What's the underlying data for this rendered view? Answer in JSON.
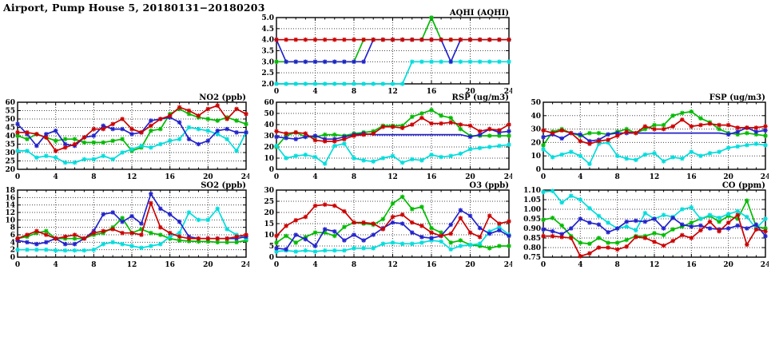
{
  "page": {
    "title": "Airport, Pump House 5, 20180131−20180203"
  },
  "series_colors": {
    "green": "#00bb00",
    "cyan": "#00dddd",
    "blue": "#2222cc",
    "red": "#cc0000"
  },
  "chart_data": [
    {
      "id": "aqhi",
      "type": "line",
      "title": "AQHI (AQHI)",
      "xlabel": "",
      "ylabel": "",
      "xlim": [
        0,
        24
      ],
      "xticks": [
        "0",
        "4",
        "8",
        "12",
        "16",
        "20",
        "24"
      ],
      "xminor": 1,
      "x_start": 0,
      "x_step": 1,
      "ylim": [
        2,
        5
      ],
      "yticks": [
        "2.0",
        "2.5",
        "3.0",
        "3.5",
        "4.0",
        "4.5",
        "5.0"
      ],
      "grid": true,
      "legend": "none",
      "series": [
        {
          "name": "green",
          "color": "#00bb00",
          "values": [
            3,
            3,
            3,
            3,
            3,
            3,
            3,
            3,
            3,
            4,
            4,
            4,
            4,
            4,
            4,
            4,
            5,
            4,
            4,
            4,
            4,
            4,
            4,
            4,
            4
          ]
        },
        {
          "name": "cyan",
          "color": "#00dddd",
          "values": [
            2,
            2,
            2,
            2,
            2,
            2,
            2,
            2,
            2,
            2,
            2,
            2,
            2,
            2,
            3,
            3,
            3,
            3,
            3,
            3,
            3,
            3,
            3,
            3,
            3
          ]
        },
        {
          "name": "blue",
          "color": "#2222cc",
          "values": [
            4,
            3,
            3,
            3,
            3,
            3,
            3,
            3,
            3,
            3,
            4,
            4,
            4,
            4,
            4,
            4,
            4,
            4,
            3,
            4,
            4,
            4,
            4,
            4,
            4
          ]
        },
        {
          "name": "red",
          "color": "#cc0000",
          "values": [
            4,
            4,
            4,
            4,
            4,
            4,
            4,
            4,
            4,
            4,
            4,
            4,
            4,
            4,
            4,
            4,
            4,
            4,
            4,
            4,
            4,
            4,
            4,
            4,
            4
          ]
        }
      ]
    },
    {
      "id": "no2",
      "type": "line",
      "title": "NO2 (ppb)",
      "xlabel": "",
      "ylabel": "",
      "xlim": [
        0,
        24
      ],
      "xticks": [
        "0",
        "4",
        "8",
        "12",
        "16",
        "20",
        "24"
      ],
      "xminor": 1,
      "x_start": 0,
      "x_step": 1,
      "ylim": [
        20,
        60
      ],
      "yticks": [
        "20",
        "25",
        "30",
        "35",
        "40",
        "45",
        "50",
        "55",
        "60"
      ],
      "grid": true,
      "legend": "none",
      "series": [
        {
          "name": "green",
          "color": "#00bb00",
          "values": [
            40,
            38,
            41,
            39,
            37,
            38,
            38,
            36,
            36,
            36,
            37,
            38,
            31,
            33,
            43,
            44,
            53,
            56,
            53,
            51,
            50,
            49,
            51,
            49,
            47
          ]
        },
        {
          "name": "cyan",
          "color": "#00dddd",
          "values": [
            31,
            31,
            27,
            28,
            27,
            24,
            24,
            26,
            26,
            28,
            26,
            30,
            32,
            34,
            33,
            35,
            37,
            38,
            45,
            44,
            43,
            41,
            38,
            31,
            42
          ]
        },
        {
          "name": "blue",
          "color": "#2222cc",
          "values": [
            47,
            41,
            34,
            41,
            43,
            35,
            34,
            39,
            40,
            46,
            44,
            44,
            41,
            42,
            49,
            50,
            51,
            48,
            38,
            35,
            37,
            43,
            44,
            42,
            42
          ]
        },
        {
          "name": "red",
          "color": "#cc0000",
          "values": [
            42,
            42,
            41,
            39,
            31,
            33,
            35,
            39,
            44,
            44,
            47,
            50,
            44,
            42,
            46,
            50,
            52,
            57,
            55,
            52,
            56,
            58,
            50,
            56,
            53
          ]
        }
      ]
    },
    {
      "id": "rsp",
      "type": "line",
      "title": "RSP (ug/m3)",
      "xlabel": "",
      "ylabel": "",
      "xlim": [
        0,
        24
      ],
      "xticks": [
        "0",
        "4",
        "8",
        "12",
        "16",
        "20",
        "24"
      ],
      "xminor": 1,
      "x_start": 0,
      "x_step": 1,
      "ylim": [
        0,
        60
      ],
      "yticks": [
        "0",
        "10",
        "20",
        "30",
        "40",
        "50",
        "60"
      ],
      "grid": true,
      "legend": "none",
      "series": [
        {
          "name": "green",
          "color": "#00bb00",
          "values": [
            20,
            30,
            33,
            29,
            29,
            31,
            31,
            30,
            32,
            33,
            34,
            39,
            39,
            39,
            47,
            50,
            53,
            48,
            46,
            36,
            30,
            30,
            30,
            30,
            30
          ]
        },
        {
          "name": "cyan",
          "color": "#00dddd",
          "values": [
            21,
            10,
            12,
            13,
            11,
            5,
            21,
            23,
            10,
            8,
            7,
            10,
            12,
            6,
            9,
            8,
            13,
            11,
            12,
            14,
            18,
            19,
            20,
            21,
            22
          ]
        },
        {
          "name": "blue",
          "color": "#2222cc",
          "nomark": [
            10,
            19
          ],
          "values": [
            29,
            28,
            27,
            29,
            30,
            27,
            27,
            29,
            31,
            32,
            31,
            31,
            31,
            31,
            31,
            31,
            31,
            31,
            31,
            31,
            29,
            31,
            36,
            33,
            34
          ]
        },
        {
          "name": "red",
          "color": "#cc0000",
          "values": [
            34,
            32,
            33,
            32,
            26,
            25,
            25,
            27,
            30,
            31,
            32,
            38,
            38,
            37,
            40,
            46,
            41,
            41,
            42,
            40,
            39,
            34,
            36,
            35,
            40
          ]
        }
      ]
    },
    {
      "id": "fsp",
      "type": "line",
      "title": "FSP (ug/m3)",
      "xlabel": "",
      "ylabel": "",
      "xlim": [
        0,
        24
      ],
      "xticks": [
        "0",
        "4",
        "8",
        "12",
        "16",
        "20",
        "24"
      ],
      "xminor": 1,
      "x_start": 0,
      "x_step": 1,
      "ylim": [
        0,
        50
      ],
      "yticks": [
        "0",
        "10",
        "20",
        "30",
        "40",
        "50"
      ],
      "grid": true,
      "legend": "none",
      "series": [
        {
          "name": "green",
          "color": "#00bb00",
          "values": [
            18,
            28,
            30,
            27,
            25,
            27,
            27,
            26,
            28,
            30,
            27,
            30,
            33,
            33,
            40,
            42,
            43,
            38,
            35,
            30,
            27,
            26,
            27,
            26,
            25
          ]
        },
        {
          "name": "cyan",
          "color": "#00dddd",
          "values": [
            15,
            9,
            11,
            13,
            10,
            4,
            19,
            20,
            10,
            8,
            7,
            11,
            12,
            6,
            9,
            8,
            13,
            10,
            12,
            13,
            16,
            17,
            18,
            19,
            18
          ]
        },
        {
          "name": "blue",
          "color": "#2222cc",
          "nomark": [
            10,
            19
          ],
          "values": [
            24,
            26,
            23,
            27,
            26,
            21,
            22,
            26,
            27,
            27,
            27,
            27,
            27,
            27,
            27,
            27,
            27,
            27,
            27,
            27,
            26,
            28,
            31,
            28,
            29
          ]
        },
        {
          "name": "red",
          "color": "#cc0000",
          "values": [
            29,
            27,
            29,
            27,
            21,
            19,
            21,
            22,
            25,
            28,
            27,
            32,
            30,
            30,
            32,
            37,
            32,
            33,
            34,
            33,
            33,
            31,
            31,
            31,
            32
          ]
        }
      ]
    },
    {
      "id": "so2",
      "type": "line",
      "title": "SO2 (ppb)",
      "xlabel": "",
      "ylabel": "",
      "xlim": [
        0,
        24
      ],
      "xticks": [
        "0",
        "4",
        "8",
        "12",
        "16",
        "20",
        "24"
      ],
      "xminor": 1,
      "x_start": 0,
      "x_step": 1,
      "ylim": [
        0,
        18
      ],
      "yticks": [
        "0",
        "2",
        "4",
        "6",
        "8",
        "10",
        "12",
        "14",
        "16",
        "18"
      ],
      "grid": true,
      "legend": "none",
      "series": [
        {
          "name": "green",
          "color": "#00bb00",
          "values": [
            5,
            5.5,
            6.5,
            7,
            5,
            5,
            5,
            5,
            6,
            6.5,
            8,
            10.5,
            6.5,
            7.5,
            6.5,
            6,
            5,
            4.5,
            4.3,
            4.2,
            4.2,
            4,
            4,
            4,
            4.5
          ]
        },
        {
          "name": "cyan",
          "color": "#00dddd",
          "values": [
            2,
            2,
            2,
            2,
            1.8,
            1.8,
            1.8,
            1.8,
            2,
            3.5,
            4,
            3.5,
            3,
            2.5,
            3,
            3.5,
            5.5,
            6.5,
            12,
            10,
            10,
            13,
            7.5,
            6,
            5
          ]
        },
        {
          "name": "blue",
          "color": "#2222cc",
          "values": [
            4.5,
            4,
            3.5,
            4,
            5,
            3.5,
            3.5,
            5,
            7,
            11.5,
            12,
            9.5,
            11,
            9,
            17,
            13,
            11.5,
            9.5,
            5.5,
            5,
            5,
            5,
            5,
            5,
            5.5
          ]
        },
        {
          "name": "red",
          "color": "#cc0000",
          "values": [
            5,
            6,
            7,
            6,
            5,
            5.5,
            6,
            5,
            6.5,
            7,
            7.5,
            6.5,
            6.5,
            6,
            14.5,
            8,
            6.5,
            5.5,
            5,
            5,
            5,
            5,
            5,
            5.5,
            6
          ]
        }
      ]
    },
    {
      "id": "o3",
      "type": "line",
      "title": "O3 (ppb)",
      "xlabel": "",
      "ylabel": "",
      "xlim": [
        0,
        24
      ],
      "xticks": [
        "0",
        "4",
        "8",
        "12",
        "16",
        "20",
        "24"
      ],
      "xminor": 1,
      "x_start": 0,
      "x_step": 1,
      "ylim": [
        0,
        30
      ],
      "yticks": [
        "0",
        "5",
        "10",
        "15",
        "20",
        "25",
        "30"
      ],
      "grid": true,
      "legend": "none",
      "series": [
        {
          "name": "green",
          "color": "#00bb00",
          "values": [
            6.5,
            9.5,
            6.5,
            9,
            11,
            11,
            9.5,
            13.5,
            15.5,
            15,
            14.5,
            17,
            24,
            27,
            21.5,
            22.5,
            13,
            11,
            6.5,
            7.5,
            5.5,
            5,
            4,
            5,
            5
          ]
        },
        {
          "name": "cyan",
          "color": "#00dddd",
          "values": [
            2.5,
            3,
            2.5,
            3,
            2.5,
            3,
            3,
            3,
            4,
            4,
            4,
            6,
            6.5,
            6,
            6,
            6.5,
            7.5,
            7,
            3.5,
            5,
            5.5,
            6,
            11.5,
            13.5,
            10
          ]
        },
        {
          "name": "blue",
          "color": "#2222cc",
          "values": [
            4,
            3.5,
            10,
            8,
            5,
            12.5,
            11.5,
            7.5,
            10,
            7.5,
            10,
            13,
            15.5,
            15,
            11,
            9,
            8.5,
            9.5,
            14.5,
            21,
            18.5,
            13,
            10.5,
            12,
            9.5
          ]
        },
        {
          "name": "red",
          "color": "#cc0000",
          "values": [
            9.5,
            14,
            16.5,
            18,
            23,
            23.5,
            23,
            20.5,
            15.5,
            15.5,
            15,
            12.5,
            18,
            19,
            15.5,
            14,
            11,
            9.5,
            10.5,
            17.5,
            11,
            9,
            18.5,
            15,
            16
          ]
        }
      ]
    },
    {
      "id": "co",
      "type": "line",
      "title": "CO (ppm)",
      "xlabel": "",
      "ylabel": "",
      "xlim": [
        0,
        24
      ],
      "xticks": [
        "0",
        "4",
        "8",
        "12",
        "16",
        "20",
        "24"
      ],
      "xminor": 1,
      "x_start": 0,
      "x_step": 1,
      "ylim": [
        0.75,
        1.1
      ],
      "yticks": [
        "0.75",
        "0.80",
        "0.85",
        "0.90",
        "0.95",
        "1.00",
        "1.05",
        "1.10"
      ],
      "grid": true,
      "legend": "none",
      "series": [
        {
          "name": "green",
          "color": "#00bb00",
          "values": [
            0.945,
            0.955,
            0.915,
            0.86,
            0.825,
            0.82,
            0.85,
            0.825,
            0.825,
            0.84,
            0.86,
            0.86,
            0.875,
            0.865,
            0.895,
            0.91,
            0.93,
            0.95,
            0.965,
            0.935,
            0.965,
            0.95,
            1.045,
            0.91,
            0.9
          ]
        },
        {
          "name": "cyan",
          "color": "#00dddd",
          "values": [
            1.09,
            1.095,
            1.035,
            1.07,
            1.05,
            1.005,
            0.965,
            0.93,
            0.9,
            0.91,
            0.89,
            0.98,
            0.95,
            0.97,
            0.96,
            1.0,
            1.01,
            0.95,
            0.97,
            0.955,
            0.975,
            0.99,
            0.96,
            0.9,
            0.95
          ]
        },
        {
          "name": "blue",
          "color": "#2222cc",
          "values": [
            0.895,
            0.885,
            0.87,
            0.9,
            0.95,
            0.93,
            0.92,
            0.88,
            0.9,
            0.935,
            0.94,
            0.935,
            0.95,
            0.9,
            0.955,
            0.92,
            0.91,
            0.915,
            0.9,
            0.895,
            0.9,
            0.915,
            0.9,
            0.92,
            0.86
          ]
        },
        {
          "name": "red",
          "color": "#cc0000",
          "values": [
            0.86,
            0.86,
            0.855,
            0.85,
            0.755,
            0.77,
            0.8,
            0.8,
            0.79,
            0.805,
            0.855,
            0.85,
            0.83,
            0.81,
            0.835,
            0.865,
            0.85,
            0.89,
            0.935,
            0.885,
            0.93,
            0.97,
            0.815,
            0.895,
            0.885
          ]
        }
      ]
    }
  ]
}
